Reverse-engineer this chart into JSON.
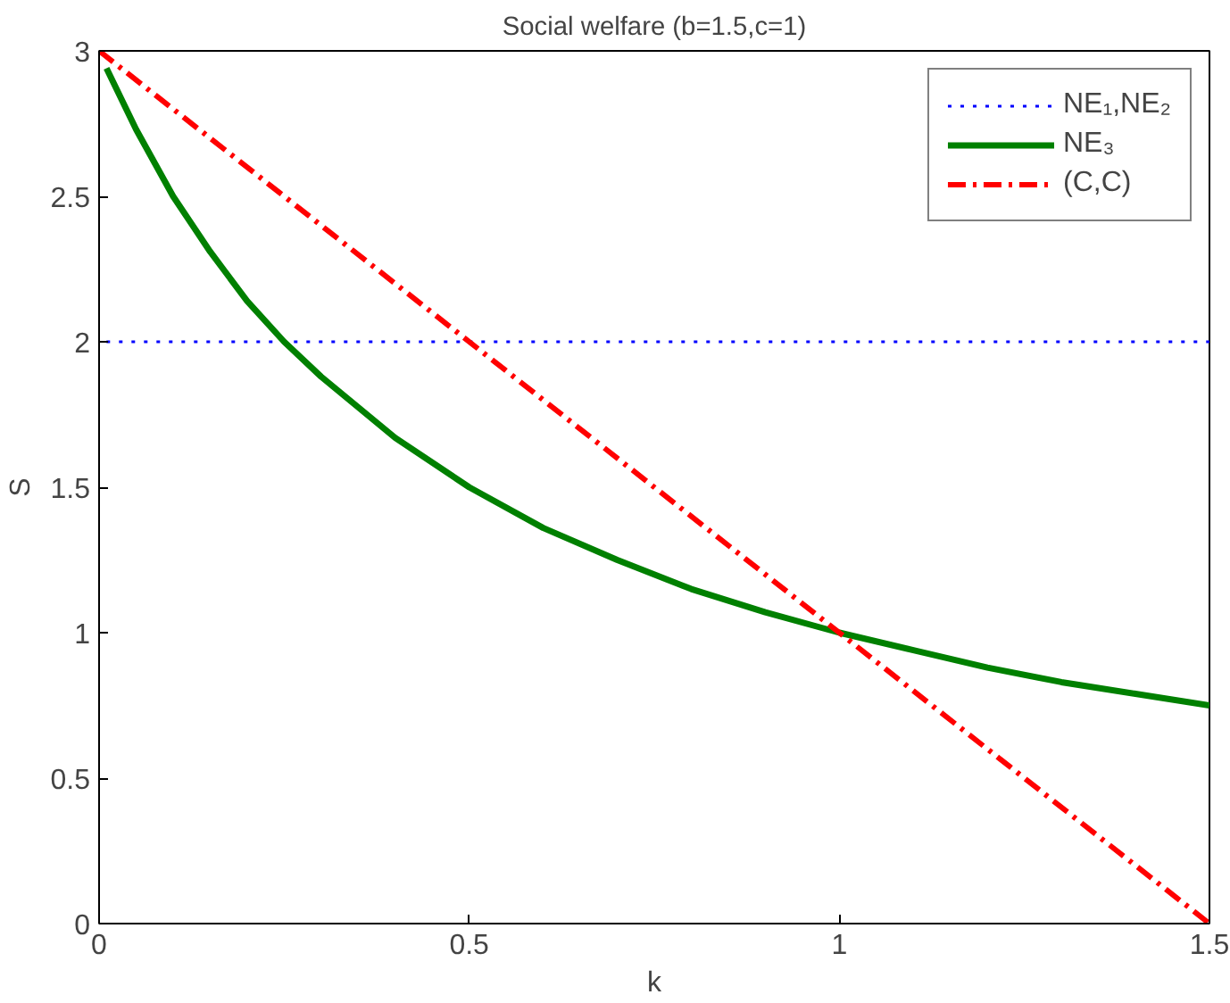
{
  "chart_data": {
    "type": "line",
    "title": "Social welfare (b=1.5,c=1)",
    "xlabel": "k",
    "ylabel": "S",
    "xlim": [
      0,
      1.5
    ],
    "ylim": [
      0,
      3
    ],
    "xticks": [
      0,
      0.5,
      1,
      1.5
    ],
    "yticks": [
      0,
      0.5,
      1,
      1.5,
      2,
      2.5,
      3
    ],
    "grid": false,
    "legend": "top right",
    "series": [
      {
        "name": "NE₁,NE₂",
        "color": "#0000ff",
        "line_style": "dotted",
        "x": [
          0.01,
          1.5
        ],
        "values": [
          2,
          2
        ]
      },
      {
        "name": "NE₃",
        "color": "#008000",
        "line_style": "solid",
        "x": [
          0.01,
          0.05,
          0.1,
          0.15,
          0.2,
          0.25,
          0.3,
          0.4,
          0.5,
          0.6,
          0.7,
          0.8,
          0.9,
          1.0,
          1.1,
          1.2,
          1.3,
          1.4,
          1.5
        ],
        "values": [
          2.94,
          2.73,
          2.5,
          2.31,
          2.14,
          2,
          1.88,
          1.67,
          1.5,
          1.36,
          1.25,
          1.15,
          1.07,
          1,
          0.94,
          0.88,
          0.83,
          0.79,
          0.75
        ]
      },
      {
        "name": "(C,C)",
        "color": "#ff0000",
        "line_style": "dashdot",
        "x": [
          0,
          1.5
        ],
        "values": [
          3,
          0
        ]
      }
    ]
  }
}
